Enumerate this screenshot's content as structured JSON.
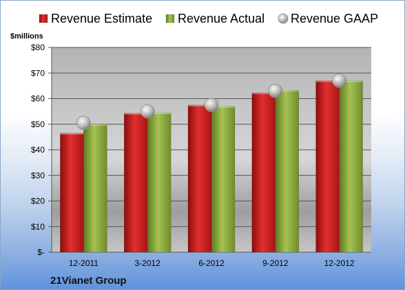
{
  "chart_data": {
    "type": "bar",
    "title": "",
    "ylabel": "$millions",
    "company": "21Vianet Group",
    "categories": [
      "12-2011",
      "3-2012",
      "6-2012",
      "9-2012",
      "12-2012"
    ],
    "series": [
      {
        "name": "Revenue Estimate",
        "kind": "bar",
        "color": "#cc2222",
        "values": [
          46.5,
          54.3,
          57.5,
          62.3,
          67.0
        ]
      },
      {
        "name": "Revenue Actual",
        "kind": "bar",
        "color": "#8aaa3c",
        "values": [
          50.0,
          54.5,
          57.0,
          63.3,
          67.0
        ]
      },
      {
        "name": "Revenue GAAP",
        "kind": "marker",
        "color": "#aaaaaa",
        "values": [
          50.5,
          55.0,
          57.5,
          63.0,
          67.0
        ]
      }
    ],
    "ylim": [
      0,
      80
    ],
    "yticks": [
      0,
      10,
      20,
      30,
      40,
      50,
      60,
      70,
      80
    ],
    "ytick_labels": [
      "$-",
      "$10",
      "$20",
      "$30",
      "$40",
      "$50",
      "$60",
      "$70",
      "$80"
    ],
    "grid": true,
    "legend_position": "top"
  }
}
